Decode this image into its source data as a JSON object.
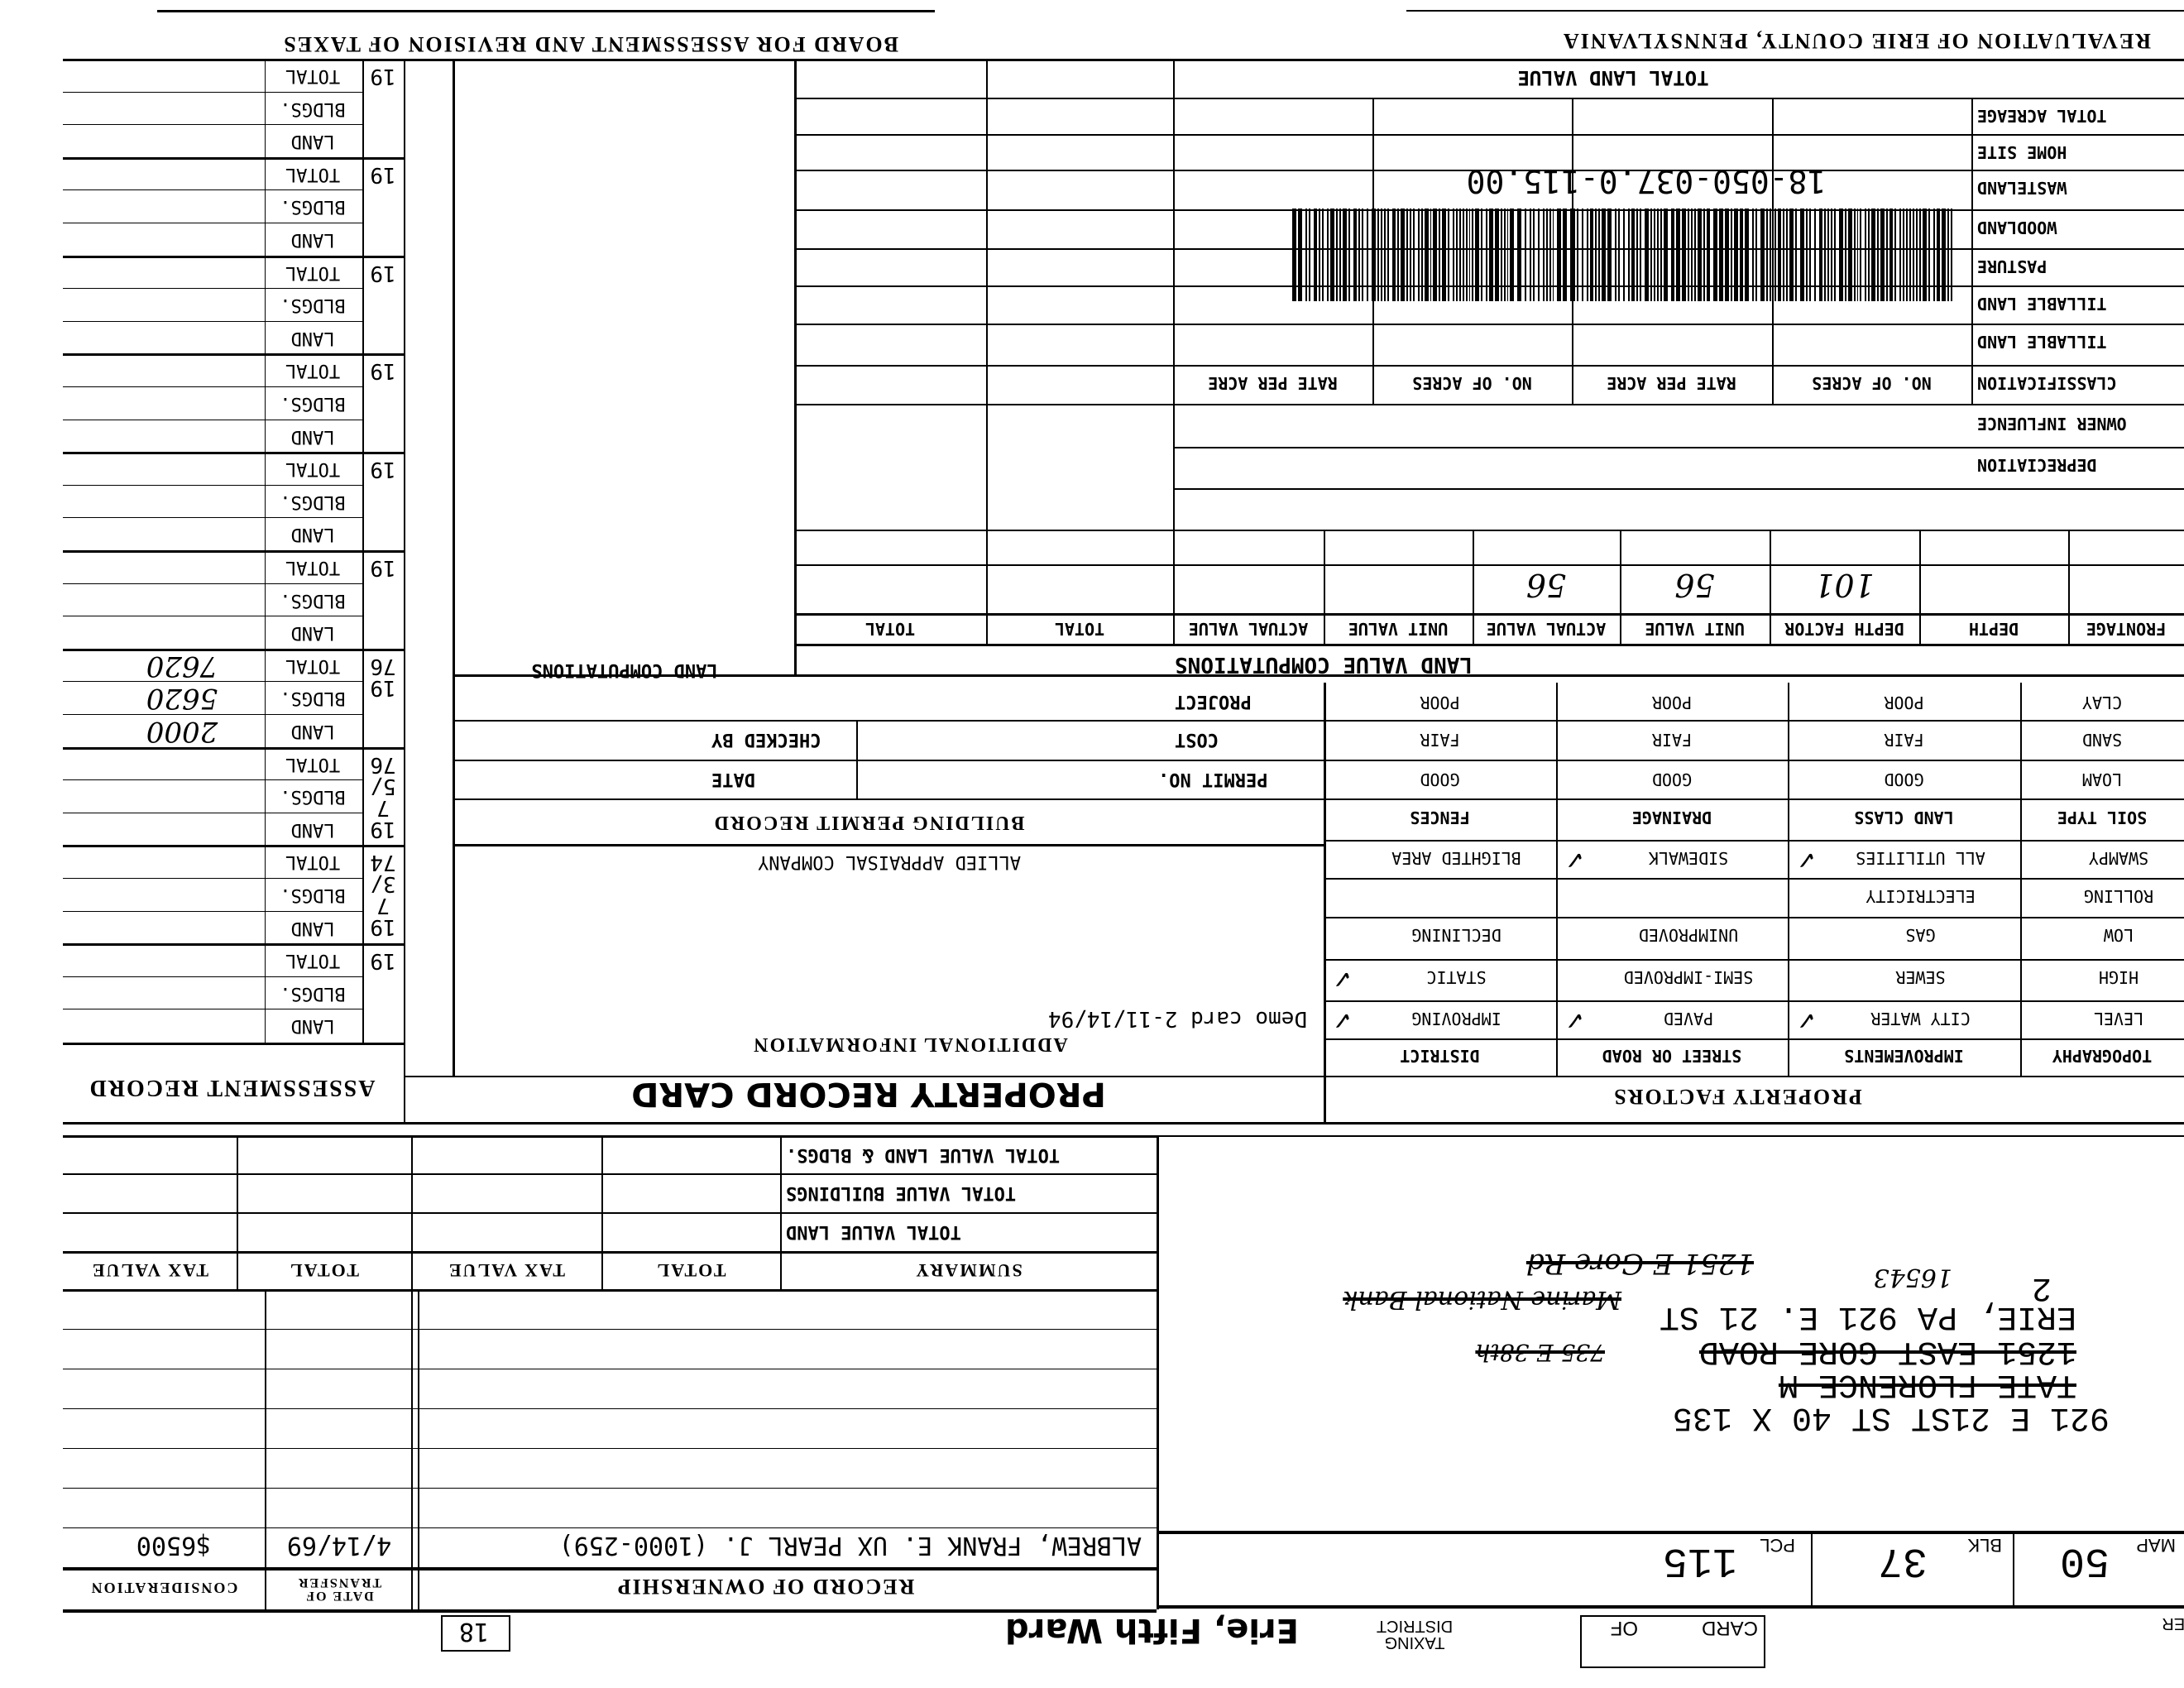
{
  "header": {
    "county": "REVALUATION OF ERIE COUNTY, PENNSYLVANIA",
    "board": "BOARD FOR ASSESSMENT AND REVISION OF TAXES"
  },
  "assessment": {
    "title": "ASSESSMENT RECORD",
    "labels": {
      "total": "TOTAL",
      "bldgs": "BLDGS.",
      "land": "LAND"
    },
    "groups": [
      {
        "year": "19",
        "total": "",
        "bldgs": "",
        "land": ""
      },
      {
        "year": "19",
        "total": "",
        "bldgs": "",
        "land": ""
      },
      {
        "year": "19",
        "total": "",
        "bldgs": "",
        "land": ""
      },
      {
        "year": "19",
        "total": "",
        "bldgs": "",
        "land": ""
      },
      {
        "year": "19",
        "total": "",
        "bldgs": "",
        "land": ""
      },
      {
        "year": "19",
        "total": "",
        "bldgs": "",
        "land": ""
      },
      {
        "year": "1976",
        "total": "7620",
        "bldgs": "5620",
        "land": "2000"
      },
      {
        "year": "1975/76",
        "total": "",
        "bldgs": "",
        "land": ""
      },
      {
        "year": "1973/74",
        "total": "",
        "bldgs": "",
        "land": ""
      },
      {
        "year": "19",
        "total": "",
        "bldgs": "",
        "land": ""
      }
    ]
  },
  "land_computations": {
    "title": "LAND COMPUTATIONS"
  },
  "land_table": {
    "total_land_value": "TOTAL LAND VALUE",
    "rows": [
      "TOTAL ACREAGE",
      "HOME SITE",
      "WASTELAND",
      "WOODLAND",
      "PASTURE",
      "TILLABLE LAND",
      "TILLABLE LAND"
    ],
    "classification": "CLASSIFICATION",
    "headers": [
      "NO. OF ACRES",
      "RATE PER ACRE",
      "NO. OF ACRES",
      "RATE PER ACRE"
    ],
    "owner_influence": "OWNER INFLUENCE",
    "depreciation": "DEPRECIATION",
    "parcel_id": "18-050-037.0-115.00"
  },
  "land_value": {
    "title": "LAND VALUE COMPUTATIONS",
    "headers": [
      "FRONTAGE",
      "DEPTH",
      "DEPTH FACTOR",
      "UNIT VALUE",
      "ACTUAL VALUE",
      "UNIT VALUE",
      "ACTUAL VALUE",
      "TOTAL",
      "TOTAL"
    ],
    "values": [
      "",
      "",
      "101",
      "56",
      "56",
      "",
      "",
      "",
      ""
    ]
  },
  "property_factors": {
    "title": "PROPERTY FACTORS",
    "top_headers": [
      "SOIL TYPE",
      "LAND CLASS",
      "DRAINAGE",
      "FENCES"
    ],
    "top_rows": [
      [
        "LOAM",
        "GOOD",
        "GOOD",
        "GOOD"
      ],
      [
        "SAND",
        "FAIR",
        "FAIR",
        "FAIR"
      ],
      [
        "CLAY",
        "POOR",
        "POOR",
        "POOR"
      ]
    ],
    "bottom_headers": [
      "TOPOGRAPHY",
      "IMPROVEMENTS",
      "STREET OR ROAD",
      "DISTRICT"
    ],
    "bottom_rows": [
      [
        "LEVEL",
        "CITY WATER",
        "PAVED",
        "IMPROVING"
      ],
      [
        "HIGH",
        "SEWER",
        "SEMI-IMPROVED",
        "STATIC"
      ],
      [
        "LOW",
        "GAS",
        "UNIMPROVED",
        "DECLINING"
      ],
      [
        "ROLLING",
        "ELECTRICITY",
        "",
        ""
      ],
      [
        "SWAMPY",
        "ALL UTILITIES",
        "SIDEWALK",
        "BLIGHTED AREA"
      ]
    ],
    "checked": [
      "CITY WATER",
      "PAVED",
      "IMPROVING",
      "STATIC",
      "ALL UTILITIES",
      "SIDEWALK"
    ]
  },
  "building_permit": {
    "title": "BUILDING PERMIT RECORD",
    "project": "PROJECT",
    "cost": "COST",
    "permit_no": "PERMIT NO.",
    "checked_by": "CHECKED BY",
    "date": "DATE"
  },
  "additional": {
    "company": "ALLIED APPRAISAL COMPANY",
    "note": "Demo card 2-11/14/94",
    "title": "ADDITIONAL INFORMATION",
    "card_title": "PROPERTY RECORD CARD"
  },
  "summary": {
    "header": [
      "SUMMARY",
      "TOTAL",
      "TAX VALUE",
      "TOTAL",
      "TAX VALUE"
    ],
    "rows": [
      "TOTAL VALUE LAND & BLDGS.",
      "TOTAL VALUE BUILDINGS",
      "TOTAL VALUE LAND"
    ]
  },
  "ownership": {
    "title": "RECORD OF OWNERSHIP",
    "date_header": "DATE OF TRANSFER",
    "consideration_header": "CONSIDERATION",
    "rows": [
      {
        "owner": "ALBREW, FRANK E. UX PEARL J.  (1000-259)",
        "date": "4/14/69",
        "consideration": "$6500"
      }
    ]
  },
  "address": {
    "line1": "921 E 21ST ST   40 X 135",
    "line2": "TATE FLORENCE M",
    "line3": "1251 EAST GORE ROAD",
    "line4": "ERIE, PA 921 E. 21 ST",
    "line5": "2",
    "zip_note": "16543",
    "handwritten1": "1251 E Gore Rd",
    "handwritten2": "Marine National Bank",
    "handwritten3": "735 E 38th"
  },
  "parcel": {
    "map_label": "MAP",
    "map": "50",
    "blk_label": "BLK",
    "blk": "37",
    "pcl_label": "PCL",
    "pcl": "115"
  },
  "footer": {
    "card": "CARD",
    "of": "OF",
    "taxing_district": "TAXING DISTRICT",
    "district": "Erie, Fifth Ward",
    "ward_number": "18",
    "ward_label": "WARD NUMBER"
  }
}
